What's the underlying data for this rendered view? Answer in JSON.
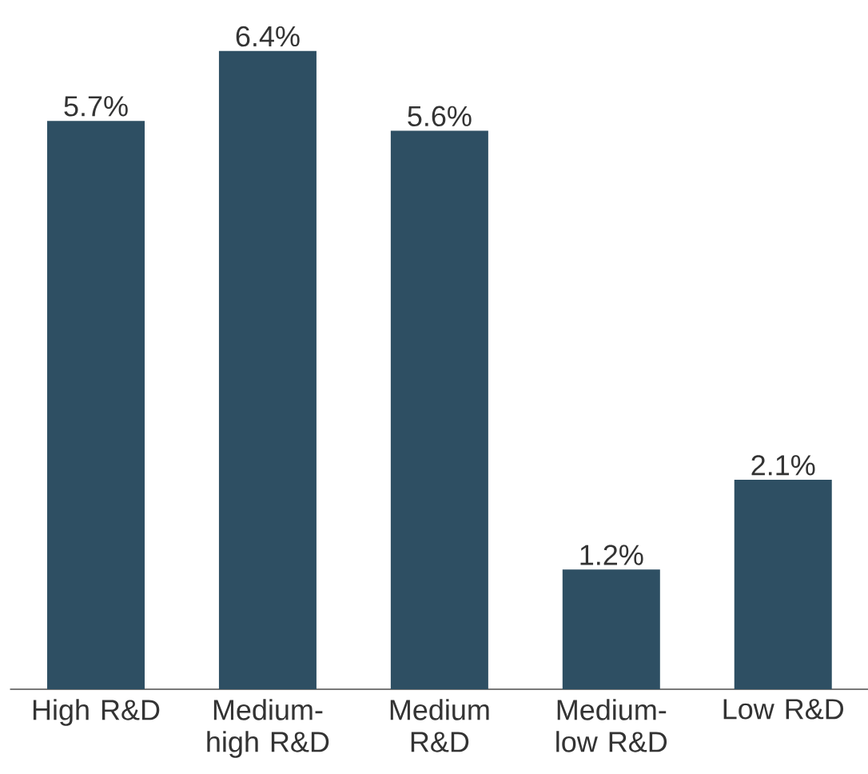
{
  "chart_data": {
    "type": "bar",
    "categories": [
      "High R&D",
      "Medium-high R&D",
      "Medium R&D",
      "Medium-low R&D",
      "Low R&D"
    ],
    "values": [
      5.7,
      6.4,
      5.6,
      1.2,
      2.1
    ],
    "value_labels": [
      "5.7%",
      "6.4%",
      "5.6%",
      "1.2%",
      "2.1%"
    ],
    "color": "#2e4f63"
  }
}
